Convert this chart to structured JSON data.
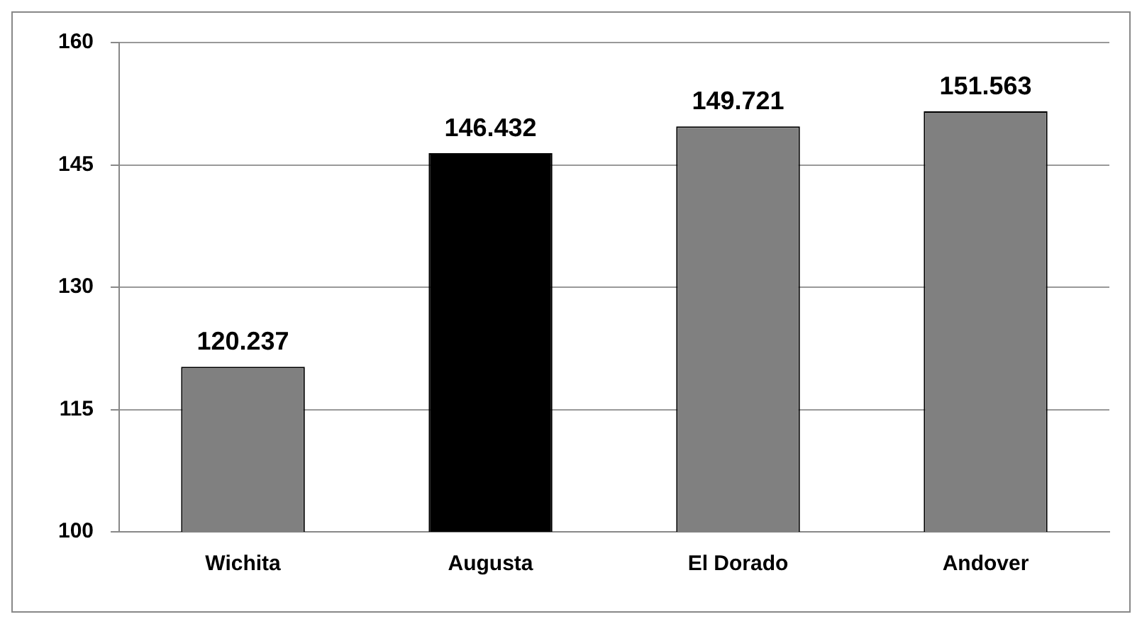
{
  "chart_data": {
    "type": "bar",
    "categories": [
      "Wichita",
      "Augusta",
      "El Dorado",
      "Andover"
    ],
    "values": [
      120.237,
      146.432,
      149.721,
      151.563
    ],
    "colors": [
      "#808080",
      "#000000",
      "#808080",
      "#808080"
    ],
    "ylim": [
      100,
      160
    ],
    "yticks": [
      100,
      115,
      130,
      145,
      160
    ],
    "grid": "y",
    "data_labels": true,
    "legend": false
  }
}
